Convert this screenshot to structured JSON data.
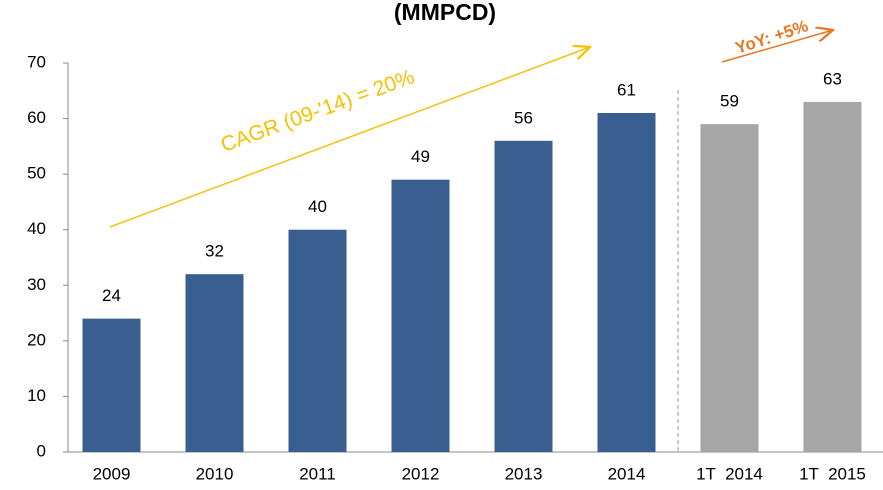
{
  "chart_data": {
    "type": "bar",
    "title": "(MMPCD)",
    "categories": [
      "2009",
      "2010",
      "2011",
      "2012",
      "2013",
      "2014",
      "1T  2014",
      "1T  2015"
    ],
    "values": [
      24,
      32,
      40,
      49,
      56,
      61,
      59,
      63
    ],
    "colors": [
      "#385f8f",
      "#385f8f",
      "#385f8f",
      "#385f8f",
      "#385f8f",
      "#385f8f",
      "#a6a6a6",
      "#a6a6a6"
    ],
    "ylim": [
      0,
      70
    ],
    "yticks": [
      0,
      10,
      20,
      30,
      40,
      50,
      60,
      70
    ],
    "grid": false,
    "annotations": [
      "CAGR (09-'14) = 20%",
      "YoY: +5%"
    ]
  }
}
